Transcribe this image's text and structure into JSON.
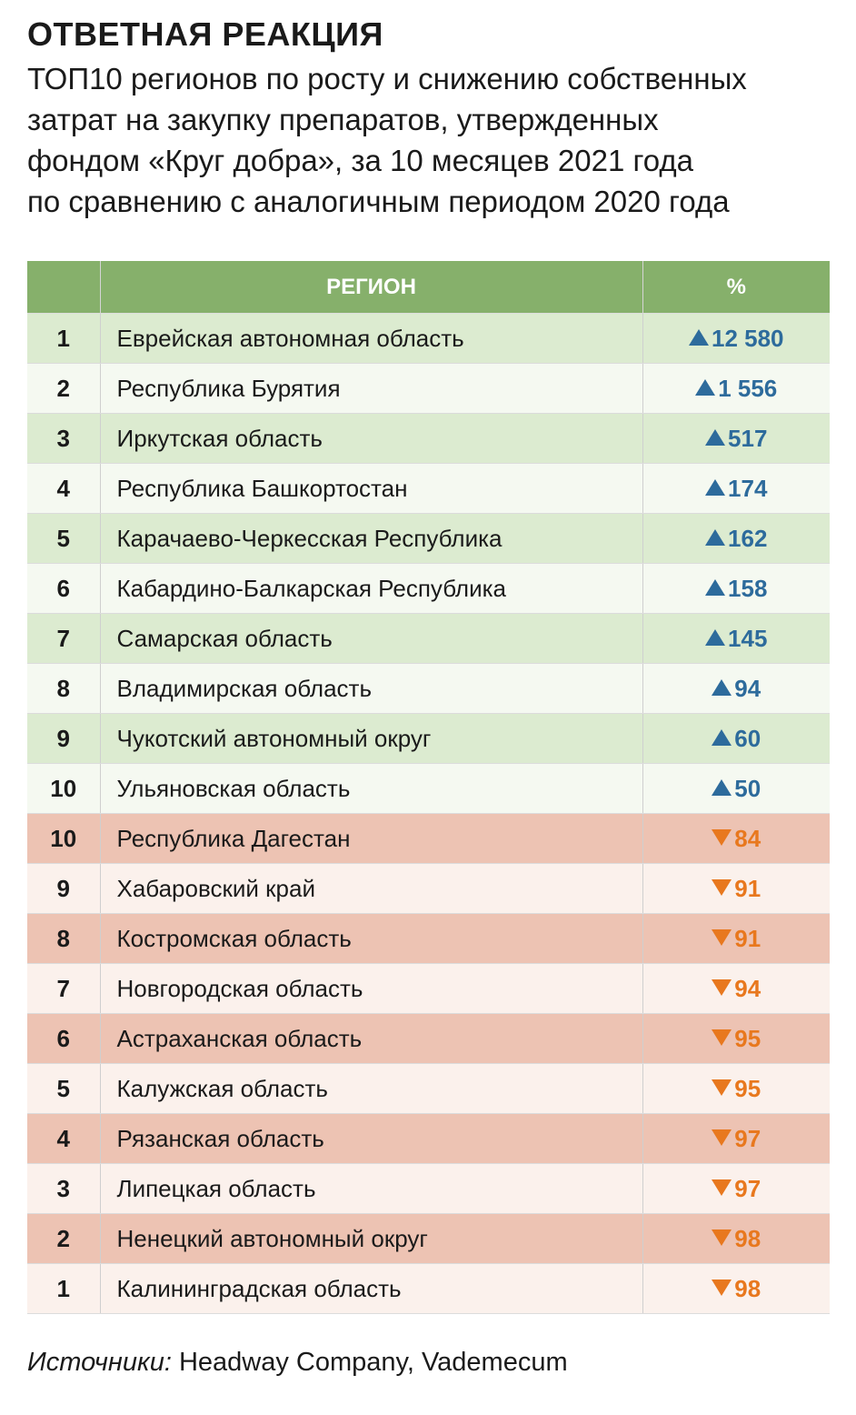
{
  "headline": "ОТВЕТНАЯ РЕАКЦИЯ",
  "subtitle_lines": [
    "ТОП10 регионов по росту и снижению собственных",
    "затрат на закупку препаратов, утвержденных",
    "фондом «Круг добра», за 10 месяцев 2021 года",
    "по сравнению с аналогичным периодом 2020 года"
  ],
  "table": {
    "header_rank": "",
    "header_region": "РЕГИОН",
    "header_pct": "%"
  },
  "colors": {
    "header_green": "#86b06b",
    "growth_row_dark": "#dcebd0",
    "growth_row_light": "#f5f9f1",
    "decline_row_dark": "#edc3b3",
    "decline_row_light": "#fbf1ec",
    "up_arrow": "#2d6b9c",
    "down_arrow": "#e8781e"
  },
  "icons": {
    "up": "triangle-up-icon",
    "down": "triangle-down-icon"
  },
  "chart_data": {
    "type": "table",
    "title": "ОТВЕТНАЯ РЕАКЦИЯ",
    "subtitle": "ТОП10 регионов по росту и снижению собственных затрат на закупку препаратов, утвержденных фондом «Круг добра», за 10 месяцев 2021 года по сравнению с аналогичным периодом 2020 года",
    "columns": [
      "",
      "РЕГИОН",
      "%"
    ],
    "rows": [
      {
        "rank": "1",
        "region": "Еврейская автономная область",
        "direction": "up",
        "value": "12 580"
      },
      {
        "rank": "2",
        "region": "Республика Бурятия",
        "direction": "up",
        "value": "1 556"
      },
      {
        "rank": "3",
        "region": "Иркутская область",
        "direction": "up",
        "value": "517"
      },
      {
        "rank": "4",
        "region": "Республика Башкортостан",
        "direction": "up",
        "value": "174"
      },
      {
        "rank": "5",
        "region": "Карачаево-Черкесская Республика",
        "direction": "up",
        "value": "162"
      },
      {
        "rank": "6",
        "region": "Кабардино-Балкарская Республика",
        "direction": "up",
        "value": "158"
      },
      {
        "rank": "7",
        "region": "Самарская область",
        "direction": "up",
        "value": "145"
      },
      {
        "rank": "8",
        "region": "Владимирская область",
        "direction": "up",
        "value": "94"
      },
      {
        "rank": "9",
        "region": "Чукотский автономный округ",
        "direction": "up",
        "value": "60"
      },
      {
        "rank": "10",
        "region": "Ульяновская область",
        "direction": "up",
        "value": "50"
      },
      {
        "rank": "10",
        "region": "Республика Дагестан",
        "direction": "down",
        "value": "84"
      },
      {
        "rank": "9",
        "region": "Хабаровский край",
        "direction": "down",
        "value": "91"
      },
      {
        "rank": "8",
        "region": "Костромская область",
        "direction": "down",
        "value": "91"
      },
      {
        "rank": "7",
        "region": "Новгородская область",
        "direction": "down",
        "value": "94"
      },
      {
        "rank": "6",
        "region": "Астраханская область",
        "direction": "down",
        "value": "95"
      },
      {
        "rank": "5",
        "region": "Калужская область",
        "direction": "down",
        "value": "95"
      },
      {
        "rank": "4",
        "region": "Рязанская область",
        "direction": "down",
        "value": "97"
      },
      {
        "rank": "3",
        "region": "Липецкая область",
        "direction": "down",
        "value": "97"
      },
      {
        "rank": "2",
        "region": "Ненецкий автономный округ",
        "direction": "down",
        "value": "98"
      },
      {
        "rank": "1",
        "region": "Калининградская область",
        "direction": "down",
        "value": "98"
      }
    ]
  },
  "sources": {
    "label": "Источники:",
    "text": " Headway Company, Vademecum"
  }
}
